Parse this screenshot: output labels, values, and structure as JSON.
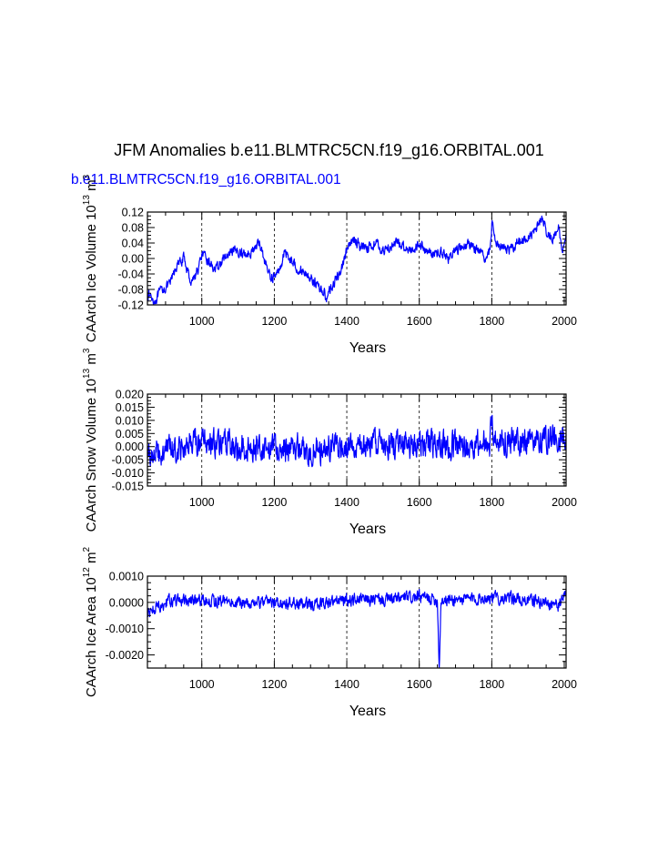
{
  "title": "JFM Anomalies b.e11.BLMTRC5CN.f19_g16.ORBITAL.001",
  "run_label": "b.e11.BLMTRC5CN.f19_g16.ORBITAL.001",
  "line_color": "#0000ff",
  "chart_data": [
    {
      "type": "line",
      "name": "ice-volume",
      "xlabel": "Years",
      "ylabel": "CAArch Ice Volume 10",
      "ylabel_exp": "13",
      "ylabel_unit": " m",
      "ylabel_unit_exp": "3",
      "xlim": [
        850,
        2005
      ],
      "ylim": [
        -0.12,
        0.12
      ],
      "xticks": [
        1000,
        1200,
        1400,
        1600,
        1800,
        2000
      ],
      "xtick_labels": [
        "1000",
        "1200",
        "1400",
        "1600",
        "1800",
        "2000"
      ],
      "yticks": [
        -0.12,
        -0.08,
        -0.04,
        0.0,
        0.04,
        0.08,
        0.12
      ],
      "ytick_labels": [
        "-0.12",
        "-0.08",
        "-0.04",
        "0.00",
        "0.04",
        "0.08",
        "0.12"
      ],
      "gridlines_x": [
        1000,
        1200,
        1400,
        1600,
        1800
      ],
      "series": {
        "x": [
          850,
          870,
          890,
          910,
          930,
          950,
          970,
          990,
          1000,
          1020,
          1040,
          1060,
          1080,
          1100,
          1120,
          1140,
          1160,
          1175,
          1190,
          1210,
          1230,
          1250,
          1270,
          1290,
          1310,
          1330,
          1345,
          1360,
          1380,
          1400,
          1420,
          1440,
          1460,
          1480,
          1500,
          1520,
          1540,
          1560,
          1580,
          1600,
          1620,
          1640,
          1660,
          1680,
          1700,
          1720,
          1740,
          1760,
          1780,
          1795,
          1800,
          1810,
          1830,
          1850,
          1870,
          1890,
          1910,
          1930,
          1940,
          1950,
          1970,
          1985,
          1995,
          2005
        ],
        "y": [
          -0.09,
          -0.11,
          -0.08,
          -0.07,
          -0.02,
          0.0,
          -0.06,
          -0.03,
          0.01,
          -0.01,
          -0.03,
          0.0,
          0.01,
          0.02,
          0.01,
          0.02,
          0.04,
          -0.01,
          -0.05,
          -0.04,
          0.02,
          -0.01,
          -0.03,
          -0.04,
          -0.06,
          -0.08,
          -0.1,
          -0.07,
          -0.04,
          0.02,
          0.05,
          0.03,
          0.03,
          0.04,
          0.02,
          0.03,
          0.04,
          0.03,
          0.02,
          0.04,
          0.02,
          0.01,
          0.02,
          0.0,
          0.02,
          0.03,
          0.04,
          0.02,
          0.0,
          0.02,
          0.09,
          0.05,
          0.03,
          0.02,
          0.04,
          0.05,
          0.06,
          0.09,
          0.11,
          0.07,
          0.05,
          0.08,
          0.01,
          0.07
        ],
        "noise": 0.011
      }
    },
    {
      "type": "line",
      "name": "snow-volume",
      "xlabel": "Years",
      "ylabel": "CAArch Snow Volume 10",
      "ylabel_exp": "13",
      "ylabel_unit": " m",
      "ylabel_unit_exp": "3",
      "xlim": [
        850,
        2005
      ],
      "ylim": [
        -0.015,
        0.02
      ],
      "xticks": [
        1000,
        1200,
        1400,
        1600,
        1800,
        2000
      ],
      "xtick_labels": [
        "1000",
        "1200",
        "1400",
        "1600",
        "1800",
        "2000"
      ],
      "yticks": [
        -0.015,
        -0.01,
        -0.005,
        0.0,
        0.005,
        0.01,
        0.015,
        0.02
      ],
      "ytick_labels": [
        "-0.015",
        "-0.010",
        "-0.005",
        "0.000",
        "0.005",
        "0.010",
        "0.015",
        "0.020"
      ],
      "gridlines_x": [
        1000,
        1200,
        1400,
        1600,
        1800
      ],
      "series": {
        "x": [
          850,
          950,
          1000,
          1100,
          1200,
          1300,
          1400,
          1500,
          1600,
          1700,
          1795,
          1800,
          1810,
          1900,
          1950,
          2005
        ],
        "y": [
          -0.003,
          0.0,
          0.002,
          0.0,
          0.0,
          -0.001,
          0.0,
          0.001,
          0.001,
          0.0,
          0.001,
          0.013,
          0.003,
          0.002,
          0.003,
          0.003
        ],
        "noise": 0.0045
      }
    },
    {
      "type": "line",
      "name": "ice-area",
      "xlabel": "Years",
      "ylabel": "CAArch Ice Area 10",
      "ylabel_exp": "12",
      "ylabel_unit": " m",
      "ylabel_unit_exp": "2",
      "xlim": [
        850,
        2005
      ],
      "ylim": [
        -0.0025,
        0.001
      ],
      "xticks": [
        1000,
        1200,
        1400,
        1600,
        1800,
        2000
      ],
      "xtick_labels": [
        "1000",
        "1200",
        "1400",
        "1600",
        "1800",
        "2000"
      ],
      "yticks": [
        -0.002,
        -0.001,
        0.0,
        0.001
      ],
      "ytick_labels": [
        "-0.0020",
        "-0.0010",
        "0.0000",
        "0.0010"
      ],
      "gridlines_x": [
        1000,
        1200,
        1400,
        1600,
        1800
      ],
      "series": {
        "x": [
          850,
          870,
          900,
          1000,
          1100,
          1200,
          1300,
          1400,
          1500,
          1600,
          1650,
          1655,
          1660,
          1700,
          1800,
          1900,
          1990,
          2005
        ],
        "y": [
          -0.0004,
          -0.0002,
          0.0,
          0.0001,
          0.0,
          0.0,
          -0.0001,
          0.0001,
          0.0001,
          0.0002,
          0.0001,
          -0.0025,
          0.0001,
          0.0001,
          0.0002,
          0.0001,
          -0.0001,
          0.0005
        ],
        "noise": 0.0002
      }
    }
  ]
}
